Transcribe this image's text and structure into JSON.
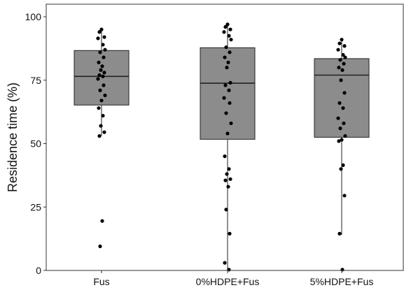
{
  "chart_data": {
    "type": "boxplot",
    "title": "",
    "xlabel": "",
    "ylabel": "Residence time (%)",
    "ylim": [
      0,
      100
    ],
    "y_ticks": [
      0,
      25,
      50,
      75,
      100
    ],
    "y_tick_labels": [
      "0",
      "25",
      "50",
      "75",
      "100"
    ],
    "grid": false,
    "legend": "none",
    "colors": {
      "box_fill": "#8c8c8c",
      "stroke": "#222222",
      "point": "#000000"
    },
    "categories": [
      "Fus",
      "0%HDPE+Fus",
      "5%HDPE+Fus"
    ],
    "boxes": [
      {
        "category": "Fus",
        "q1": 65.2,
        "median": 76.5,
        "q3": 86.7,
        "whisker_low": 53.0,
        "whisker_high": 95.0,
        "points": [
          95.0,
          94.0,
          92.0,
          91.5,
          89.0,
          87.0,
          86.0,
          84.0,
          82.0,
          80.5,
          79.0,
          78.0,
          77.0,
          76.5,
          75.5,
          73.0,
          71.0,
          69.0,
          67.0,
          64.0,
          61.0,
          57.0,
          54.5,
          53.0,
          19.5,
          9.5
        ]
      },
      {
        "category": "0%HDPE+Fus",
        "q1": 51.7,
        "median": 73.8,
        "q3": 87.8,
        "whisker_low": 0.3,
        "whisker_high": 97.0,
        "points": [
          97.0,
          96.0,
          95.0,
          94.0,
          92.5,
          91.0,
          88.0,
          86.0,
          84.0,
          82.0,
          80.0,
          74.0,
          73.0,
          71.0,
          68.0,
          66.0,
          62.0,
          58.0,
          54.0,
          45.0,
          40.0,
          38.0,
          36.0,
          35.5,
          33.0,
          24.0,
          14.5,
          3.0,
          0.3
        ]
      },
      {
        "category": "5%HDPE+Fus",
        "q1": 52.5,
        "median": 77.0,
        "q3": 83.5,
        "whisker_low": 14.0,
        "whisker_high": 91.0,
        "points": [
          91.0,
          89.5,
          88.5,
          87.0,
          85.0,
          84.0,
          83.0,
          81.5,
          80.0,
          79.0,
          75.0,
          70.0,
          66.0,
          64.0,
          60.0,
          58.0,
          56.0,
          53.0,
          51.5,
          51.0,
          41.5,
          40.0,
          29.5,
          14.5,
          0.3
        ]
      }
    ]
  }
}
